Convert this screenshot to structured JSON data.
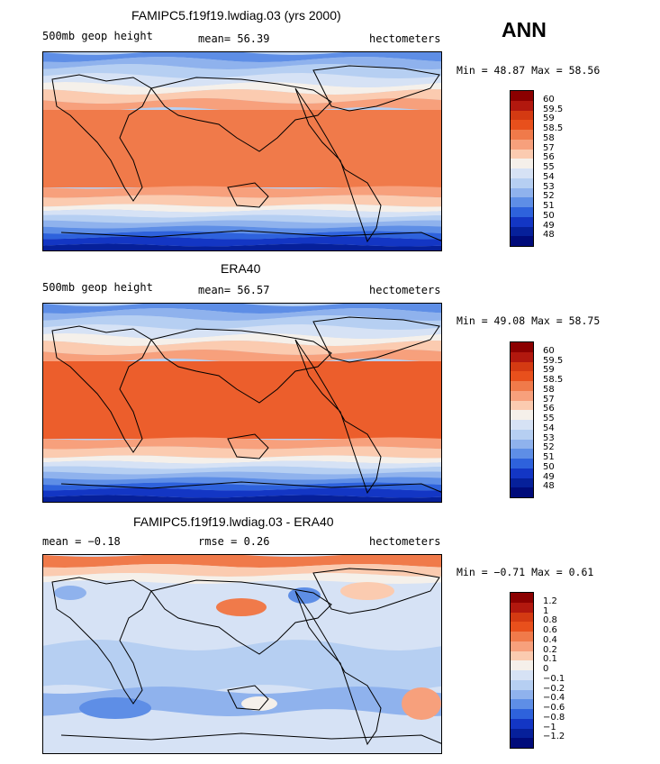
{
  "season": "ANN",
  "panels": [
    {
      "title": "FAMIPC5.f19f19.lwdiag.03 (yrs 2000)",
      "left_label": "500mb geop height",
      "mid_label": "mean=   56.39",
      "right_label": "hectometers",
      "minmax": "Min =   48.87  Max =   58.56",
      "kind": "field",
      "colorbar": {
        "labels": [
          "60",
          "59.5",
          "59",
          "58.5",
          "58",
          "57",
          "56",
          "55",
          "54",
          "53",
          "52",
          "51",
          "50",
          "49",
          "48"
        ],
        "colors": [
          "#8b0000",
          "#b2180e",
          "#d43a12",
          "#e8501c",
          "#f07a4a",
          "#f7a07c",
          "#fbcbb0",
          "#f5f0ea",
          "#d6e2f5",
          "#b6cff2",
          "#8fb2ed",
          "#5e8ee6",
          "#2e62dc",
          "#1336c4",
          "#06209a",
          "#000b7a"
        ]
      }
    },
    {
      "title": "ERA40",
      "left_label": "500mb geop height",
      "mid_label": "mean=   56.57",
      "right_label": "hectometers",
      "minmax": "Min =   49.08  Max =   58.75",
      "kind": "field",
      "colorbar": {
        "labels": [
          "60",
          "59.5",
          "59",
          "58.5",
          "58",
          "57",
          "56",
          "55",
          "54",
          "53",
          "52",
          "51",
          "50",
          "49",
          "48"
        ],
        "colors": [
          "#8b0000",
          "#b2180e",
          "#d43a12",
          "#e8501c",
          "#f07a4a",
          "#f7a07c",
          "#fbcbb0",
          "#f5f0ea",
          "#d6e2f5",
          "#b6cff2",
          "#8fb2ed",
          "#5e8ee6",
          "#2e62dc",
          "#1336c4",
          "#06209a",
          "#000b7a"
        ]
      }
    },
    {
      "title": "FAMIPC5.f19f19.lwdiag.03 - ERA40",
      "left_label": "mean =   −0.18",
      "mid_label": "rmse =    0.26",
      "right_label": "hectometers",
      "minmax": "Min =  −0.71  Max =    0.61",
      "kind": "diff",
      "colorbar": {
        "labels": [
          "1.2",
          "1",
          "0.8",
          "0.6",
          "0.4",
          "0.2",
          "0.1",
          "0",
          "−0.1",
          "−0.2",
          "−0.4",
          "−0.6",
          "−0.8",
          "−1",
          "−1.2"
        ],
        "colors": [
          "#8b0000",
          "#b2180e",
          "#d43a12",
          "#e8501c",
          "#f07a4a",
          "#f7a07c",
          "#fbcbb0",
          "#f5f0ea",
          "#d6e2f5",
          "#b6cff2",
          "#8fb2ed",
          "#5e8ee6",
          "#2e62dc",
          "#1336c4",
          "#06209a",
          "#000b7a"
        ]
      }
    }
  ]
}
